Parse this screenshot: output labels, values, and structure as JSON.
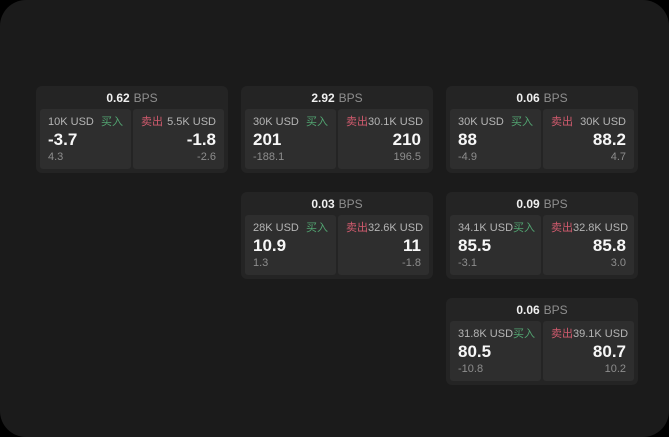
{
  "labels": {
    "buy": "买入",
    "sell": "卖出",
    "bps": "BPS"
  },
  "colors": {
    "page_background": "#000000",
    "window_background": "#1b1b1b",
    "card_background": "#242424",
    "tile_background": "#2e2e2e",
    "buy_green": "#52a471",
    "sell_red": "#d15b6e",
    "text_primary": "#f0f0f0",
    "text_muted": "#8d8d8d"
  },
  "cards": [
    {
      "bps": "0.62",
      "buy": {
        "amount": "10K USD",
        "price": "-3.7",
        "delta": "4.3"
      },
      "sell": {
        "amount": "5.5K USD",
        "price": "-1.8",
        "delta": "-2.6"
      }
    },
    {
      "bps": "2.92",
      "buy": {
        "amount": "30K USD",
        "price": "201",
        "delta": "-188.1"
      },
      "sell": {
        "amount": "30.1K USD",
        "price": "210",
        "delta": "196.5"
      }
    },
    {
      "bps": "0.06",
      "buy": {
        "amount": "30K USD",
        "price": "88",
        "delta": "-4.9"
      },
      "sell": {
        "amount": "30K USD",
        "price": "88.2",
        "delta": "4.7"
      }
    },
    {
      "bps": "0.03",
      "buy": {
        "amount": "28K USD",
        "price": "10.9",
        "delta": "1.3"
      },
      "sell": {
        "amount": "32.6K USD",
        "price": "11",
        "delta": "-1.8"
      }
    },
    {
      "bps": "0.09",
      "buy": {
        "amount": "34.1K USD",
        "price": "85.5",
        "delta": "-3.1"
      },
      "sell": {
        "amount": "32.8K USD",
        "price": "85.8",
        "delta": "3.0"
      }
    },
    {
      "bps": "0.06",
      "buy": {
        "amount": "31.8K USD",
        "price": "80.5",
        "delta": "-10.8"
      },
      "sell": {
        "amount": "39.1K USD",
        "price": "80.7",
        "delta": "10.2"
      }
    }
  ]
}
